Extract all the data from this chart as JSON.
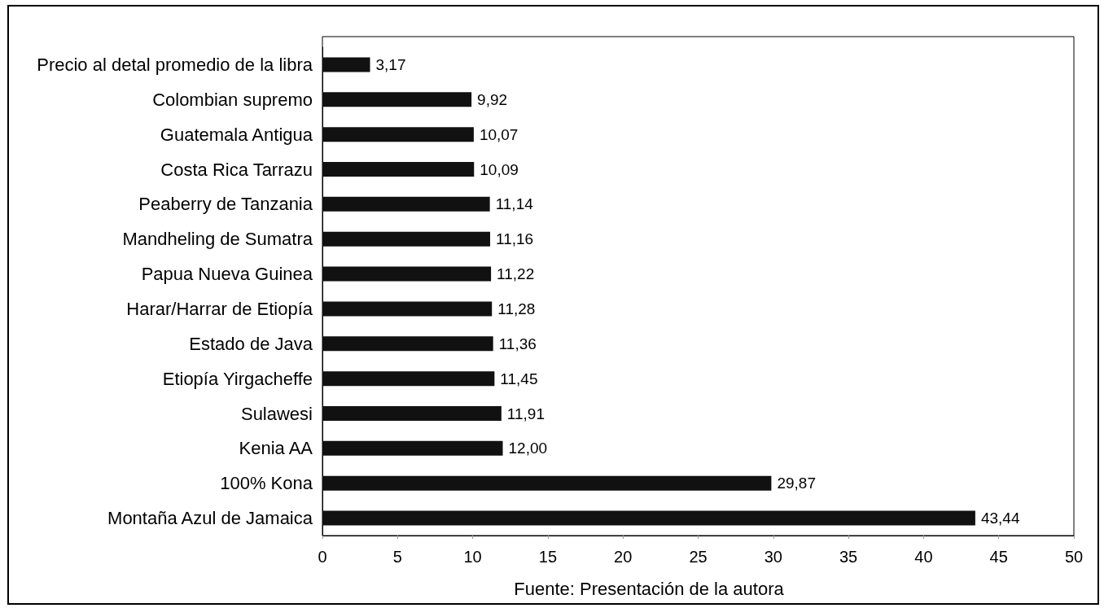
{
  "chart_data": {
    "type": "bar",
    "orientation": "horizontal",
    "categories": [
      "Precio al detal promedio de la libra",
      "Colombian supremo",
      "Guatemala Antigua",
      "Costa Rica Tarrazu",
      "Peaberry de Tanzania",
      "Mandheling de Sumatra",
      "Papua Nueva Guinea",
      "Harar/Harrar de Etiopía",
      "Estado de Java",
      "Etiopía Yirgacheffe",
      "Sulawesi",
      "Kenia AA",
      "100% Kona",
      "Montaña Azul de Jamaica"
    ],
    "values": [
      3.17,
      9.92,
      10.07,
      10.09,
      11.14,
      11.16,
      11.22,
      11.28,
      11.36,
      11.45,
      11.91,
      12.0,
      29.87,
      43.44
    ],
    "value_labels": [
      "3,17",
      "9,92",
      "10,07",
      "10,09",
      "11,14",
      "11,16",
      "11,22",
      "11,28",
      "11,36",
      "11,45",
      "11,91",
      "12,00",
      "29,87",
      "43,44"
    ],
    "color": "#111111",
    "xlim": [
      0,
      50
    ],
    "xticks": [
      0,
      5,
      10,
      15,
      20,
      25,
      30,
      35,
      40,
      45,
      50
    ],
    "annotations": [
      "Fuente: Presentación de la autora"
    ]
  }
}
